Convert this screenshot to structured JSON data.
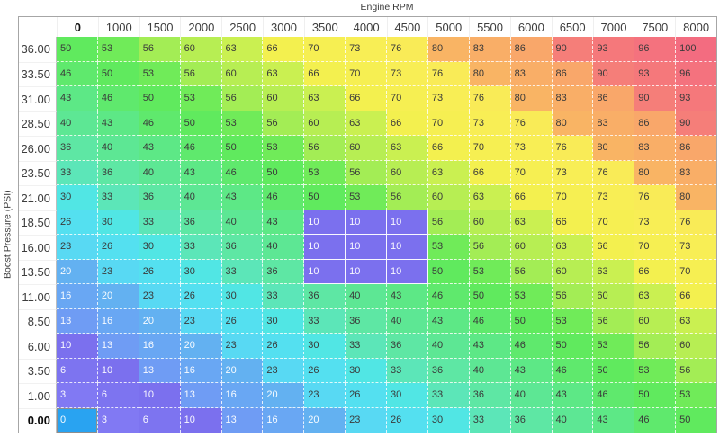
{
  "axes": {
    "x_label": "Engine RPM",
    "y_label": "Boost Pressure (PSI)"
  },
  "table": {
    "col_headers": [
      "0",
      "1000",
      "1500",
      "2000",
      "2500",
      "3000",
      "3500",
      "4000",
      "4500",
      "5000",
      "5500",
      "6000",
      "6500",
      "7000",
      "7500",
      "8000"
    ],
    "row_headers": [
      "36.00",
      "33.50",
      "31.00",
      "28.50",
      "26.00",
      "23.50",
      "21.00",
      "18.50",
      "16.00",
      "13.50",
      "11.00",
      "8.50",
      "6.00",
      "3.50",
      "1.00",
      "0.00"
    ],
    "values": [
      [
        50,
        53,
        56,
        60,
        63,
        66,
        70,
        73,
        76,
        80,
        83,
        86,
        90,
        93,
        96,
        100
      ],
      [
        46,
        50,
        53,
        56,
        60,
        63,
        66,
        70,
        73,
        76,
        80,
        83,
        86,
        90,
        93,
        96
      ],
      [
        43,
        46,
        50,
        53,
        56,
        60,
        63,
        66,
        70,
        73,
        76,
        80,
        83,
        86,
        90,
        93
      ],
      [
        40,
        43,
        46,
        50,
        53,
        56,
        60,
        63,
        66,
        70,
        73,
        76,
        80,
        83,
        86,
        90
      ],
      [
        36,
        40,
        43,
        46,
        50,
        53,
        56,
        60,
        63,
        66,
        70,
        73,
        76,
        80,
        83,
        86
      ],
      [
        33,
        36,
        40,
        43,
        46,
        50,
        53,
        56,
        60,
        63,
        66,
        70,
        73,
        76,
        80,
        83
      ],
      [
        30,
        33,
        36,
        40,
        43,
        46,
        50,
        53,
        56,
        60,
        63,
        66,
        70,
        73,
        76,
        80
      ],
      [
        26,
        30,
        33,
        36,
        40,
        43,
        10,
        10,
        10,
        56,
        60,
        63,
        66,
        70,
        73,
        76
      ],
      [
        23,
        26,
        30,
        33,
        36,
        40,
        10,
        10,
        10,
        53,
        56,
        60,
        63,
        66,
        70,
        73
      ],
      [
        20,
        23,
        26,
        30,
        33,
        36,
        10,
        10,
        10,
        50,
        53,
        56,
        60,
        63,
        66,
        70
      ],
      [
        16,
        20,
        23,
        26,
        30,
        33,
        36,
        40,
        43,
        46,
        50,
        53,
        56,
        60,
        63,
        66
      ],
      [
        13,
        16,
        20,
        23,
        26,
        30,
        33,
        36,
        40,
        43,
        46,
        50,
        53,
        56,
        60,
        63
      ],
      [
        10,
        13,
        16,
        20,
        23,
        26,
        30,
        33,
        36,
        40,
        43,
        46,
        50,
        53,
        56,
        60
      ],
      [
        6,
        10,
        13,
        16,
        20,
        23,
        26,
        30,
        33,
        36,
        40,
        43,
        46,
        50,
        53,
        56
      ],
      [
        3,
        6,
        10,
        13,
        16,
        20,
        23,
        26,
        30,
        33,
        36,
        40,
        43,
        46,
        50,
        53
      ],
      [
        0,
        3,
        6,
        10,
        13,
        16,
        20,
        23,
        26,
        30,
        33,
        36,
        40,
        43,
        46,
        50
      ]
    ],
    "selected_cell": {
      "row_header": "0.00",
      "col_header": "0"
    },
    "selected_block": {
      "row_headers": [
        "18.50",
        "16.00",
        "13.50"
      ],
      "col_headers": [
        "3500",
        "4000",
        "4500"
      ]
    }
  },
  "colors": {
    "value_colors": {
      "0": "#29a3f1",
      "3": "#8179f3",
      "6": "#7d74f0",
      "10": "#7b70ee",
      "13": "#6f9cf4",
      "16": "#69a7f3",
      "20": "#63b1f1",
      "23": "#58d9f3",
      "26": "#54e0f0",
      "30": "#51e6e4",
      "33": "#5ce6b8",
      "36": "#5ee7a4",
      "40": "#5de794",
      "43": "#5de886",
      "46": "#5fe96d",
      "50": "#60ea5e",
      "53": "#70eb59",
      "56": "#a3ed55",
      "60": "#b7ee53",
      "63": "#caf051",
      "66": "#f3f04f",
      "70": "#f6ef52",
      "73": "#f8ee55",
      "76": "#f9eb57",
      "80": "#f9b464",
      "83": "#f9ae67",
      "86": "#f9a76a",
      "90": "#f57e79",
      "93": "#f5787b",
      "96": "#f4727e",
      "100": "#f36c80"
    },
    "dark_text": "#3a3a3a",
    "light_text": "#ffffff",
    "frame_border": "#a6a6a6",
    "cursor_border": "#8d8d8d",
    "light_text_max_value": 20
  }
}
